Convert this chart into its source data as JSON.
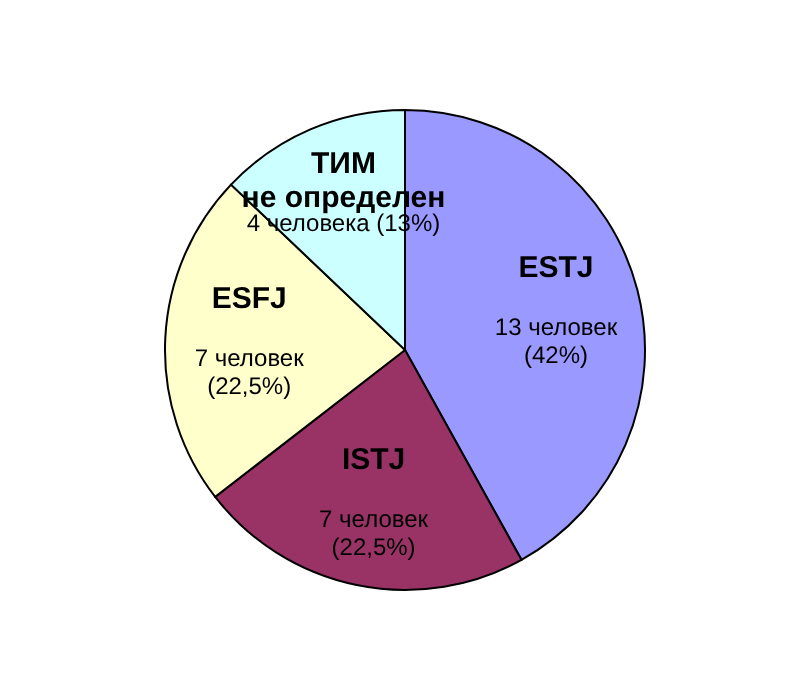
{
  "chart_data": {
    "type": "pie",
    "categories": [
      "ESTJ",
      "ISTJ",
      "ESFJ",
      "ТИМ\nне определен"
    ],
    "values": [
      13,
      7,
      7,
      4
    ],
    "colors": [
      "#9999ff",
      "#993366",
      "#ffffcc",
      "#ccffff"
    ],
    "value_labels": [
      "13 человек\n(42%)",
      "7 человек\n(22,5%)",
      "7 человек\n(22,5%)",
      "4 человека (13%)"
    ],
    "legend": false
  }
}
